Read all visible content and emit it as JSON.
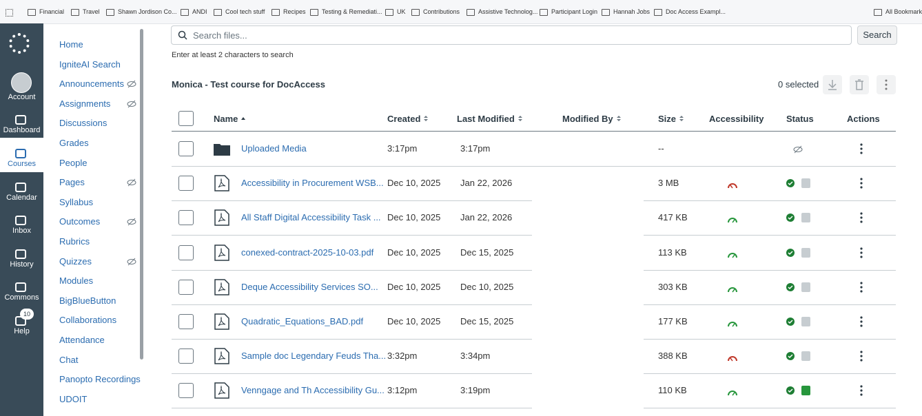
{
  "bookmarks": [
    "Financial",
    "Travel",
    "Shawn Jordison Co...",
    "ANDI",
    "Cool tech stuff",
    "Recipes",
    "Testing & Remediati...",
    "UK",
    "Contributions",
    "Assistive Technolog...",
    "Participant Login",
    "Hannah Jobs",
    "Doc Access Exampl...",
    "All Bookmarks"
  ],
  "global_nav": {
    "items": [
      "Account",
      "Dashboard",
      "Courses",
      "Calendar",
      "Inbox",
      "History",
      "Commons",
      "Help"
    ],
    "active_index": 2,
    "help_badge": 10
  },
  "course_nav": [
    {
      "label": "Home"
    },
    {
      "label": "IgniteAI Search"
    },
    {
      "label": "Announcements",
      "hidden": true
    },
    {
      "label": "Assignments",
      "hidden": true
    },
    {
      "label": "Discussions"
    },
    {
      "label": "Grades"
    },
    {
      "label": "People"
    },
    {
      "label": "Pages",
      "hidden": true
    },
    {
      "label": "Syllabus"
    },
    {
      "label": "Outcomes",
      "hidden": true
    },
    {
      "label": "Rubrics"
    },
    {
      "label": "Quizzes",
      "hidden": true
    },
    {
      "label": "Modules"
    },
    {
      "label": "BigBlueButton"
    },
    {
      "label": "Collaborations"
    },
    {
      "label": "Attendance"
    },
    {
      "label": "Chat"
    },
    {
      "label": "Panopto Recordings"
    },
    {
      "label": "UDOIT"
    }
  ],
  "search": {
    "placeholder": "Search files...",
    "button": "Search",
    "hint": "Enter at least 2 characters to search"
  },
  "folder": {
    "title": "Monica - Test course for DocAccess",
    "selected": "0 selected"
  },
  "table": {
    "columns": [
      "Name",
      "Created",
      "Last Modified",
      "Modified By",
      "Size",
      "Accessibility",
      "Status",
      "Actions"
    ],
    "rows": [
      {
        "type": "folder",
        "name": "Uploaded Media",
        "created": "3:17pm",
        "modified": "3:17pm",
        "size": "--"
      },
      {
        "type": "pdf",
        "name": "Accessibility in Procurement WSB...",
        "created": "Dec 10, 2025",
        "modified": "Jan 22, 2026",
        "size": "3 MB",
        "accessibility": "fail",
        "published": false
      },
      {
        "type": "pdf",
        "name": "All Staff Digital Accessibility Task ...",
        "created": "Dec 10, 2025",
        "modified": "Jan 22, 2026",
        "size": "417 KB",
        "accessibility": "pass",
        "published": false
      },
      {
        "type": "pdf",
        "name": "conexed-contract-2025-10-03.pdf",
        "created": "Dec 10, 2025",
        "modified": "Dec 15, 2025",
        "size": "113 KB",
        "accessibility": "pass",
        "published": false
      },
      {
        "type": "pdf",
        "name": "Deque Accessibility Services SO...",
        "created": "Dec 10, 2025",
        "modified": "Dec 10, 2025",
        "size": "303 KB",
        "accessibility": "pass",
        "published": false
      },
      {
        "type": "pdf",
        "name": "Quadratic_Equations_BAD.pdf",
        "created": "Dec 10, 2025",
        "modified": "Dec 15, 2025",
        "size": "177 KB",
        "accessibility": "pass",
        "published": false
      },
      {
        "type": "pdf",
        "name": "Sample doc Legendary Feuds Tha...",
        "created": "3:32pm",
        "modified": "3:34pm",
        "size": "388 KB",
        "accessibility": "fail",
        "published": false
      },
      {
        "type": "pdf",
        "name": "Venngage and Th Accessibility Gu...",
        "created": "3:12pm",
        "modified": "3:19pm",
        "size": "110 KB",
        "accessibility": "pass",
        "published": true
      }
    ]
  }
}
